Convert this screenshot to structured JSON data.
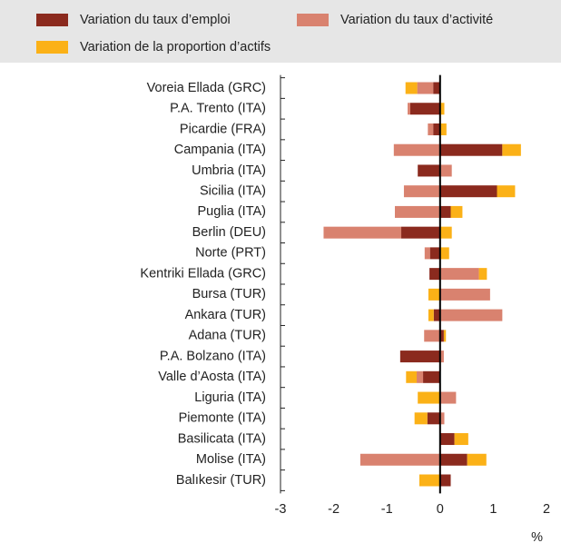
{
  "chart_data": {
    "type": "bar",
    "orientation": "horizontal",
    "stacked": true,
    "categories": [
      "Voreia Ellada (GRC)",
      "P.A. Trento (ITA)",
      "Picardie (FRA)",
      "Campania (ITA)",
      "Umbria (ITA)",
      "Sicilia (ITA)",
      "Puglia (ITA)",
      "Berlin (DEU)",
      "Norte (PRT)",
      "Kentriki Ellada (GRC)",
      "Bursa (TUR)",
      "Ankara (TUR)",
      "Adana (TUR)",
      "P.A. Bolzano (ITA)",
      "Valle d’Aosta (ITA)",
      "Liguria (ITA)",
      "Piemonte (ITA)",
      "Basilicata (ITA)",
      "Molise (ITA)",
      "Balıkesir (TUR)"
    ],
    "series": [
      {
        "name": "Variation du taux d’emploi",
        "color": "#8b2a1e",
        "values": [
          -0.13,
          -0.56,
          -0.13,
          1.17,
          -0.42,
          1.07,
          0.2,
          -0.73,
          -0.19,
          -0.2,
          0,
          -0.12,
          0.07,
          -0.75,
          -0.32,
          0,
          -0.24,
          0.27,
          0.51,
          0.2
        ]
      },
      {
        "name": "Variation du taux d’activité",
        "color": "#d9826f",
        "values": [
          -0.3,
          -0.05,
          -0.1,
          -0.87,
          0.22,
          -0.68,
          -0.85,
          -1.46,
          -0.1,
          0.73,
          0.94,
          1.17,
          -0.3,
          0.07,
          -0.12,
          0.3,
          0.08,
          0,
          -1.5,
          0
        ]
      },
      {
        "name": "Variation de la proportion d’actifs",
        "color": "#fbb117",
        "values": [
          -0.22,
          0.08,
          0.12,
          0.35,
          0,
          0.34,
          0.22,
          0.22,
          0.17,
          0.15,
          -0.22,
          -0.1,
          0.04,
          0,
          -0.2,
          -0.42,
          -0.24,
          0.26,
          0.36,
          -0.39
        ]
      }
    ],
    "xlim": [
      -3,
      2
    ],
    "xticks": [
      -3,
      -2,
      -1,
      0,
      1,
      2
    ],
    "xlabel": "%"
  }
}
